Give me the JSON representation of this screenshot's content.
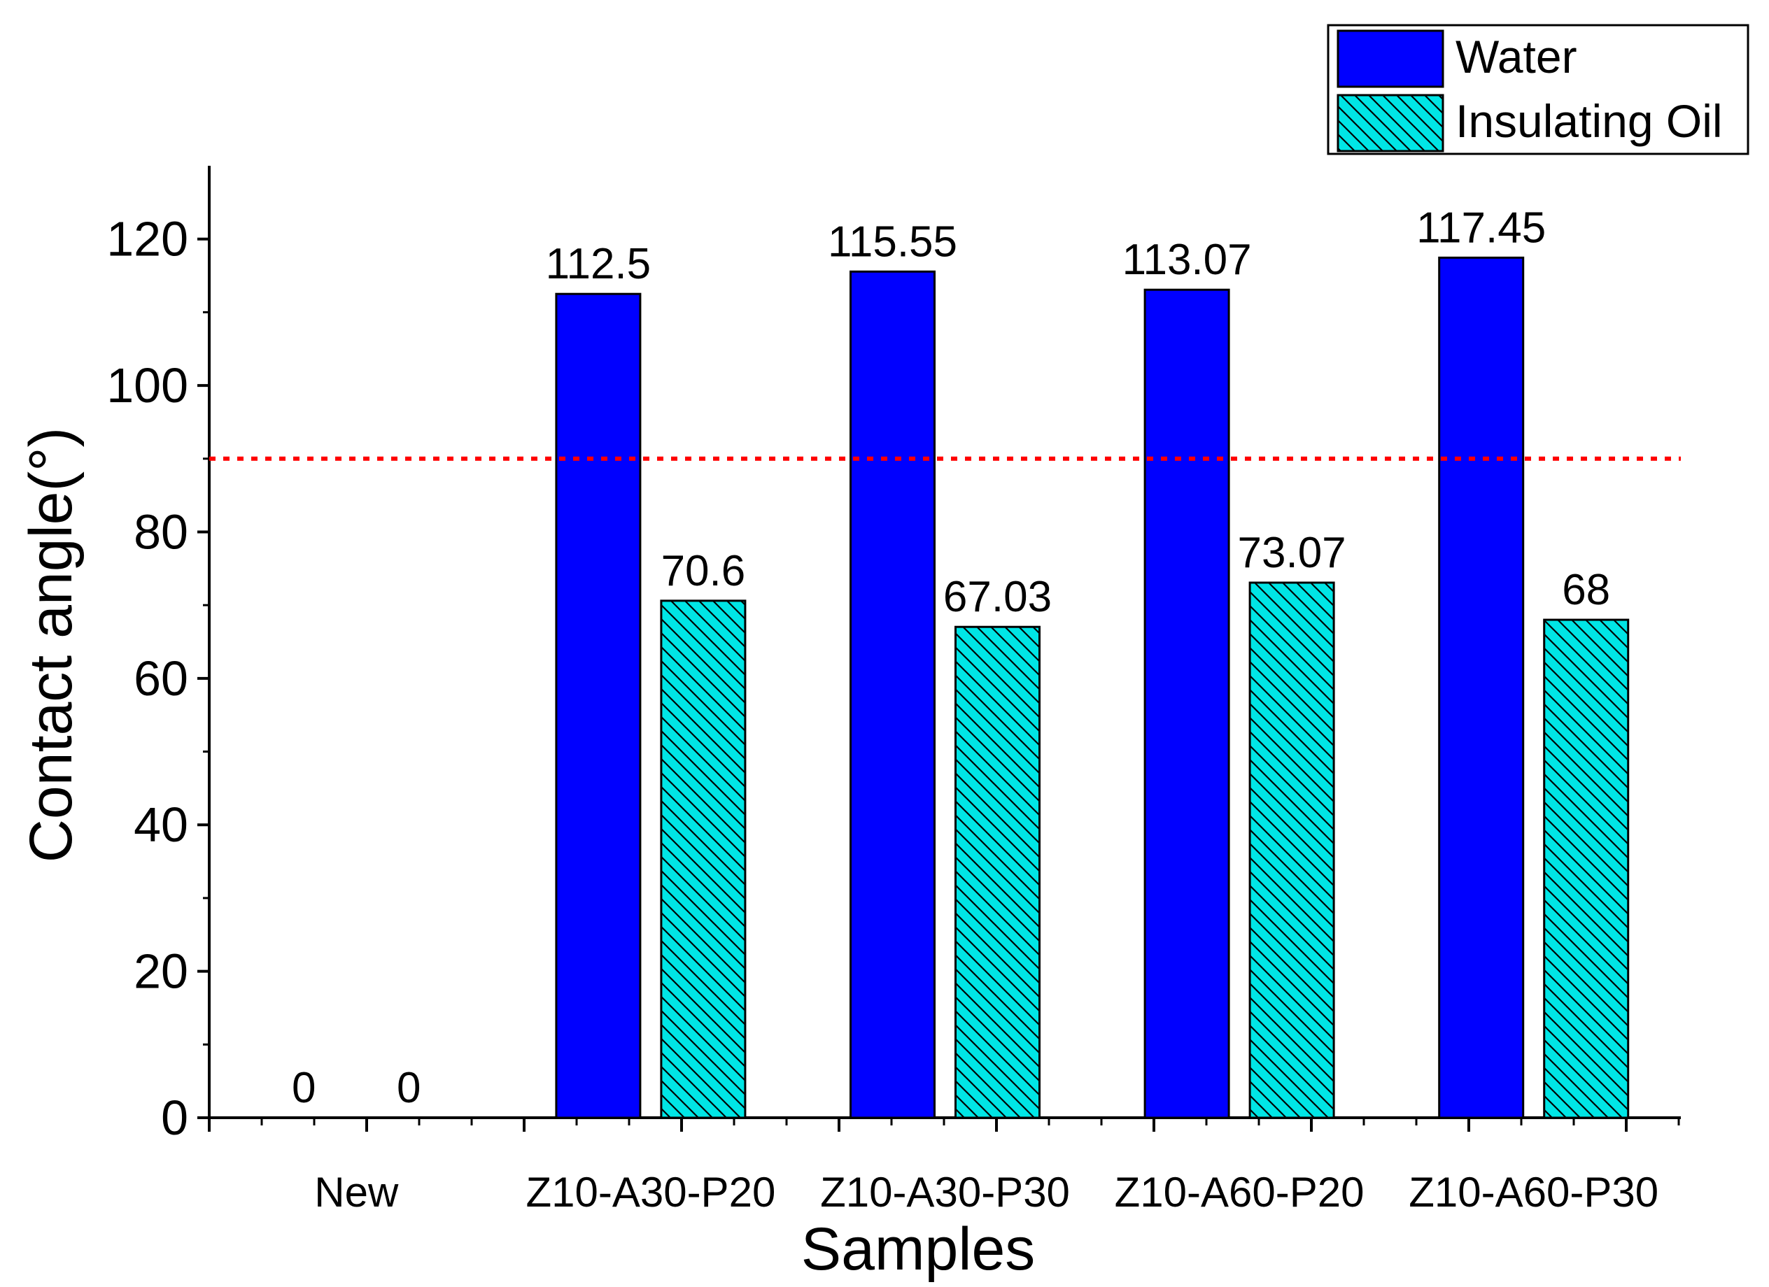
{
  "chart_data": {
    "type": "bar",
    "title": "",
    "xlabel": "Samples",
    "ylabel": "Contact angle(°)",
    "ylim": [
      0,
      130
    ],
    "yticks": [
      "0",
      "20",
      "40",
      "60",
      "80",
      "100",
      "120"
    ],
    "categories": [
      "New",
      "Z10-A30-P20",
      "Z10-A30-P30",
      "Z10-A60-P20",
      "Z10-A60-P30"
    ],
    "series": [
      {
        "name": "Water",
        "color": "#0000ff",
        "fill": "solid",
        "values": [
          0,
          112.5,
          115.55,
          113.07,
          117.45
        ],
        "labels": [
          "0",
          "112.5",
          "115.55",
          "113.07",
          "117.45"
        ]
      },
      {
        "name": "Insulating Oil",
        "color": "#00e5e5",
        "fill": "hatched",
        "values": [
          0,
          70.6,
          67.03,
          73.07,
          68
        ],
        "labels": [
          "0",
          "70.6",
          "67.03",
          "73.07",
          "68"
        ]
      }
    ],
    "reference_line": {
      "y": 90,
      "color": "#ff0000",
      "style": "dotted"
    },
    "legend": "top-right",
    "grid": false
  }
}
